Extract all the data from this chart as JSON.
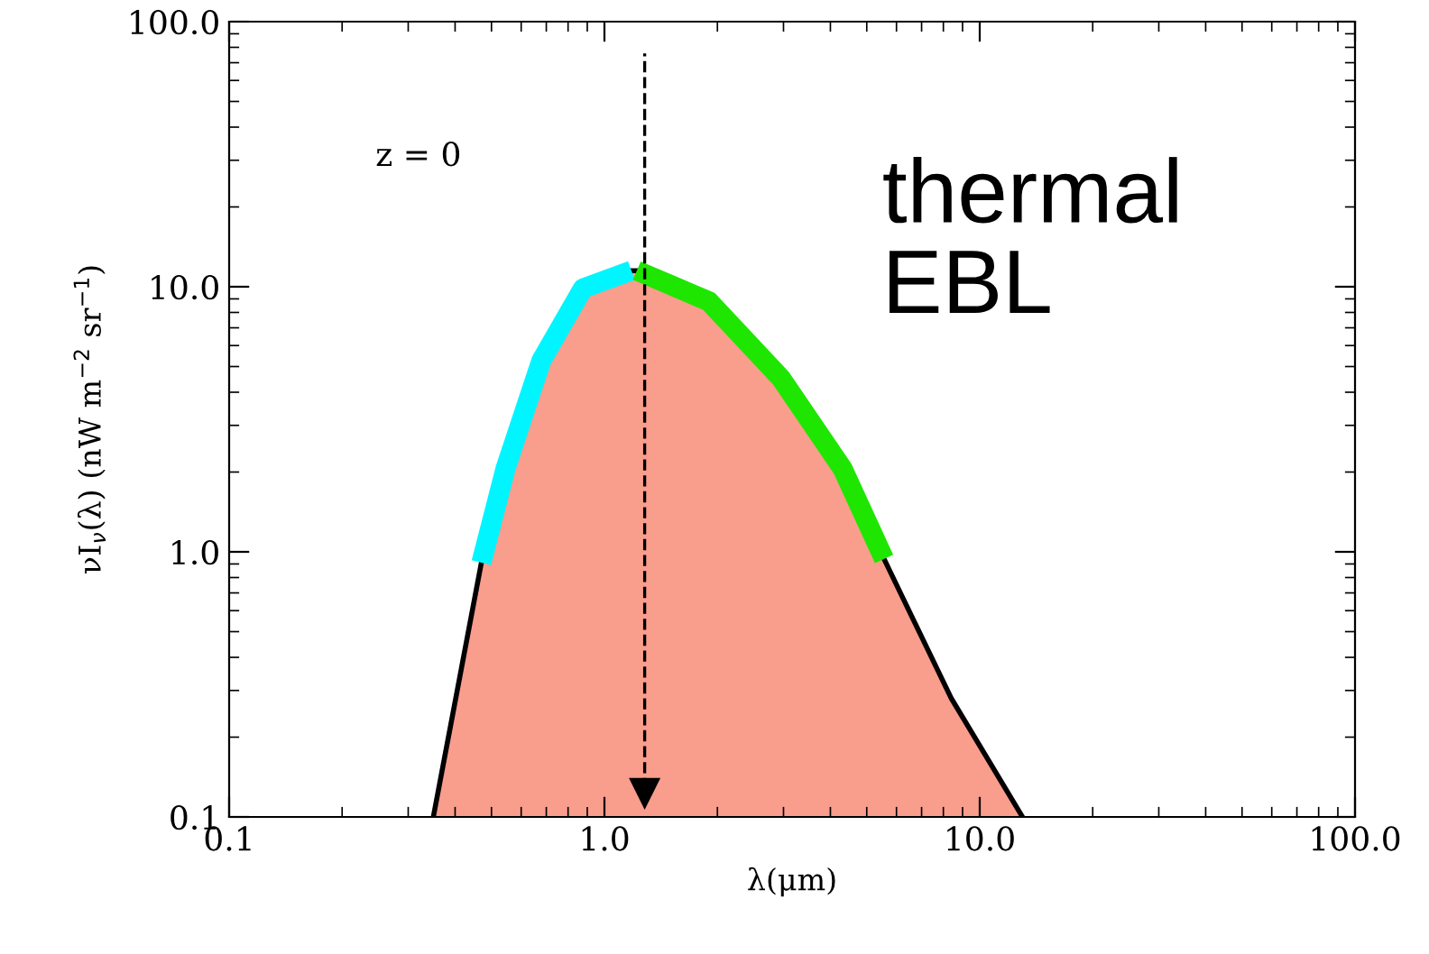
{
  "chart_data": {
    "type": "area",
    "xlabel": "λ(μm)",
    "ylabel": "νI$_{ν}$(λ) (nW m$^{−2}$ sr$^{−1}$)",
    "log": "xy",
    "xlim": [
      0.1,
      100
    ],
    "ylim": [
      0.1,
      100
    ],
    "xticks": [
      {
        "value": 0.1,
        "label": "0.1"
      },
      {
        "value": 1,
        "label": "1.0"
      },
      {
        "value": 10,
        "label": "10.0"
      },
      {
        "value": 100,
        "label": "100.0"
      }
    ],
    "yticks": [
      {
        "value": 0.1,
        "label": "0.1"
      },
      {
        "value": 1,
        "label": "1.0"
      },
      {
        "value": 10,
        "label": "10.0"
      },
      {
        "value": 100,
        "label": "100.0"
      }
    ],
    "series": [
      {
        "color": "#f99d8c",
        "x": [
          0.35,
          0.47,
          0.545,
          0.679,
          0.876,
          1.18,
          1.22,
          1.9,
          2.96,
          4.31,
          5.56,
          8.4,
          13.0
        ],
        "values": [
          0.1,
          0.91,
          2.06,
          5.26,
          9.85,
          11.5,
          11.5,
          8.8,
          4.5,
          2.06,
          0.94,
          0.28,
          0.1
        ]
      },
      {
        "type": "line",
        "color": "#00f5ff",
        "x": [
          0.47,
          0.545,
          0.679,
          0.876,
          1.18
        ],
        "values": [
          0.91,
          2.06,
          5.26,
          9.85,
          11.5
        ]
      },
      {
        "type": "line",
        "color": "#1ee600",
        "x": [
          1.22,
          1.9,
          2.96,
          4.31,
          5.56
        ],
        "values": [
          11.5,
          8.8,
          4.5,
          2.06,
          0.94
        ]
      }
    ],
    "ref_lines": [
      {
        "axis": "x",
        "value": 1.28,
        "line_style": "dashed",
        "color": "#000000"
      }
    ],
    "annotations": [
      "z = 0",
      "thermal\nEBL"
    ],
    "grid": false,
    "legend": false
  }
}
